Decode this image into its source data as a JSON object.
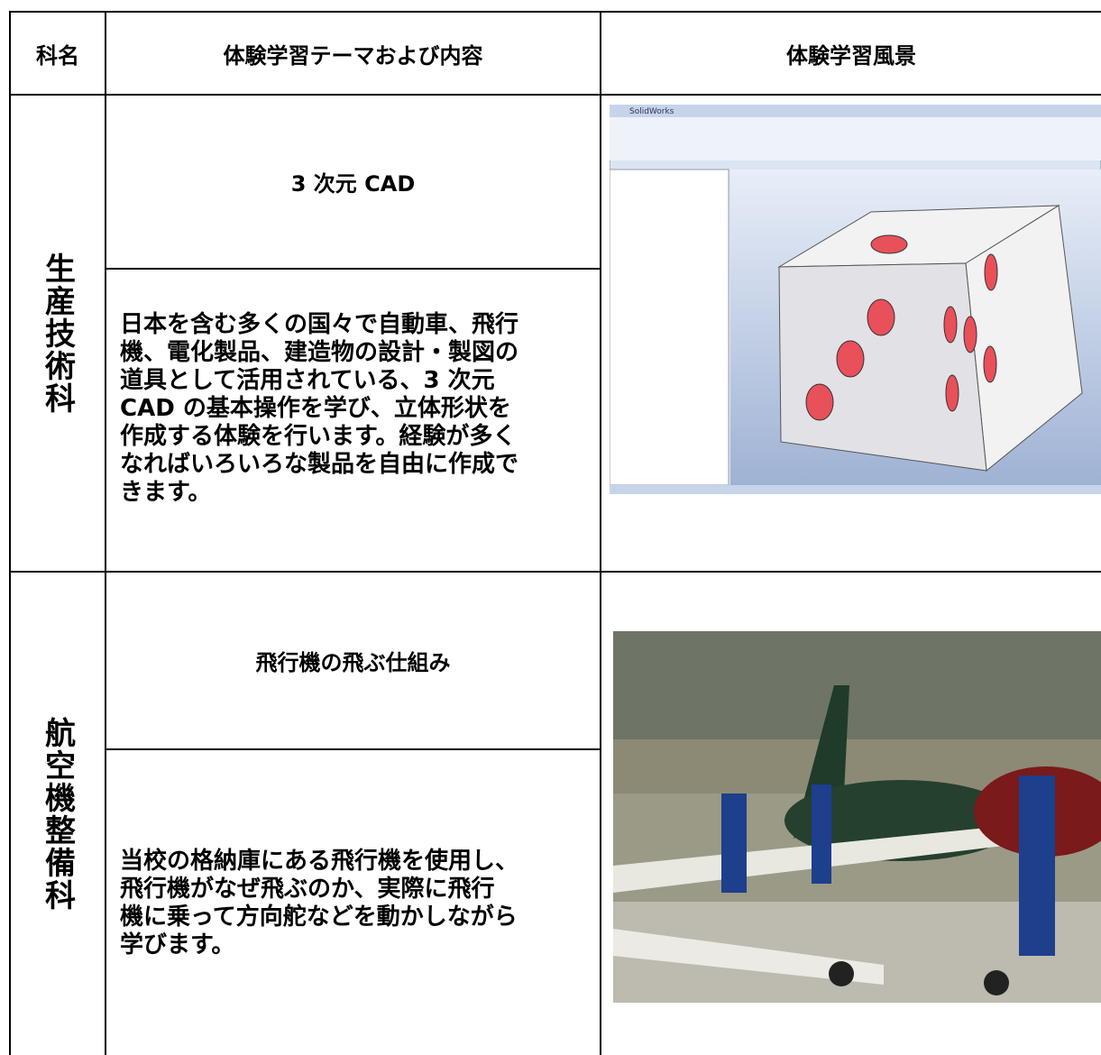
{
  "header": {
    "col1": "科名",
    "col2": "体験学習テーマおよび内容",
    "col3": "体験学習風景"
  },
  "rows": [
    {
      "department": "生産技術科",
      "theme": "3 次元 CAD",
      "description": [
        "日本を含む多くの国々で自動車、飛行",
        "機、電化製品、建造物の設計・製図の",
        "道具として活用されている、3 次元",
        "CAD の基本操作を学び、立体形状を",
        "作成する体験を行います。経験が多く",
        "なればいろいろな製品を自由に作成で",
        "きます。"
      ],
      "screenshot_title": "SolidWorks"
    },
    {
      "department": "航空機整備科",
      "theme": "飛行機の飛ぶ仕組み",
      "description": [
        "当校の格納庫にある飛行機を使用し、",
        "飛行機がなぜ飛ぶのか、実際に飛行",
        "機に乗って方向舵などを動かしながら",
        "学びます。"
      ]
    }
  ]
}
